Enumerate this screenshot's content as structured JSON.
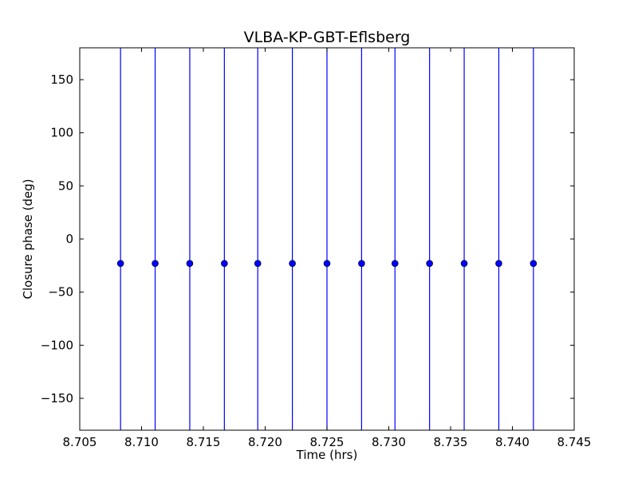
{
  "chart_data": {
    "type": "scatter",
    "title": "VLBA-KP-GBT-Eflsberg",
    "xlabel": "Time (hrs)",
    "ylabel": "Closure phase (deg)",
    "xlim": [
      8.705,
      8.745
    ],
    "ylim": [
      -180,
      180
    ],
    "xticks": [
      8.705,
      8.71,
      8.715,
      8.72,
      8.725,
      8.73,
      8.735,
      8.74,
      8.745
    ],
    "xtick_labels": [
      "8.705",
      "8.710",
      "8.715",
      "8.720",
      "8.725",
      "8.730",
      "8.735",
      "8.740",
      "8.745"
    ],
    "yticks": [
      -150,
      -100,
      -50,
      0,
      50,
      100,
      150
    ],
    "ytick_labels": [
      "−150",
      "−100",
      "−50",
      "0",
      "50",
      "100",
      "150"
    ],
    "grid": false,
    "legend": "none",
    "color": "#0000ff",
    "series": [
      {
        "x": [
          8.7083,
          8.7111,
          8.7139,
          8.7167,
          8.7194,
          8.7222,
          8.725,
          8.7278,
          8.7305,
          8.7333,
          8.7361,
          8.7389,
          8.7417
        ],
        "y": [
          -23,
          -23,
          -23,
          -23,
          -23,
          -23,
          -23,
          -23,
          -23,
          -23,
          -23,
          -23,
          -23
        ],
        "errorbar": [
          -180,
          180
        ]
      }
    ]
  }
}
